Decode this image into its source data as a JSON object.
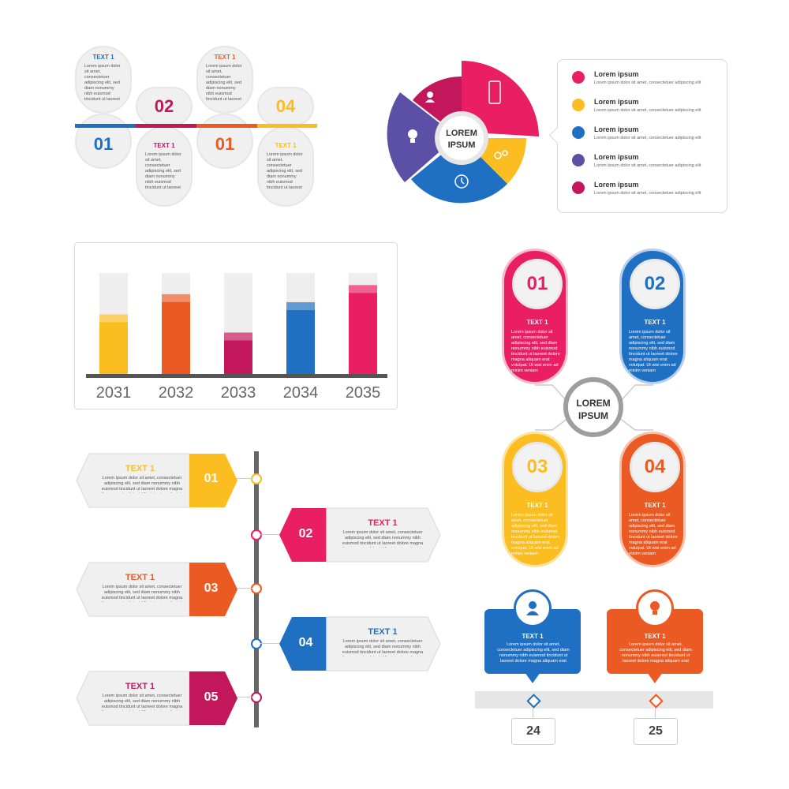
{
  "colors": {
    "pink": "#e91e63",
    "magenta": "#c2185b",
    "orange": "#ec5a24",
    "yellow": "#fbbd20",
    "blue": "#1f6fc2",
    "purple": "#5b4fa6",
    "grey": "#f0f0f0"
  },
  "lorem_small": "Lorem ipsum dolor sit amet, consectetuer adipiscing elit, sed diam nonummy nibh euismod tincidunt ut laoreet dolore magna aliquam erat volutpat. Ut wisi enim ad minim veniam",
  "wavy": {
    "items": [
      {
        "title": "TEXT 1",
        "num": "01",
        "color": "#1f6fc2"
      },
      {
        "title": "TEXT 1",
        "num": "02",
        "color": "#c2185b"
      },
      {
        "title": "TEXT 1",
        "num": "01",
        "color": "#ec5a24"
      },
      {
        "title": "TEXT 1",
        "num": "04",
        "color": "#fbbd20"
      }
    ]
  },
  "pie": {
    "center_line1": "LOREM",
    "center_line2": "IPSUM",
    "icons": [
      "user-icon",
      "phone-icon",
      "gears-icon",
      "clock-icon",
      "bulb-icon"
    ]
  },
  "legend": {
    "items": [
      {
        "title": "Lorem ipsum",
        "sub": "Lorem ipsum dolor sit amet, consectetuer adipiscing elit",
        "color": "#e91e63"
      },
      {
        "title": "Lorem ipsum",
        "sub": "Lorem ipsum dolor sit amet, consectetuer adipiscing elit",
        "color": "#fbbd20"
      },
      {
        "title": "Lorem ipsum",
        "sub": "Lorem ipsum dolor sit amet, consectetuer adipiscing elit",
        "color": "#1f6fc2"
      },
      {
        "title": "Lorem ipsum",
        "sub": "Lorem ipsum dolor sit amet, consectetuer adipiscing elit",
        "color": "#5b4fa6"
      },
      {
        "title": "Lorem ipsum",
        "sub": "Lorem ipsum dolor sit amet, consectetuer adipiscing elit",
        "color": "#c2185b"
      }
    ]
  },
  "chart_data": {
    "type": "bar",
    "categories": [
      "2031",
      "2032",
      "2033",
      "2034",
      "2035"
    ],
    "values": [
      0.59,
      0.79,
      0.41,
      0.71,
      0.88
    ],
    "colors": [
      "#fbbd20",
      "#ec5a24",
      "#c2185b",
      "#1f6fc2",
      "#e91e63"
    ],
    "ylim": [
      0,
      1
    ],
    "grid": false
  },
  "mind": {
    "center_line1": "LOREM",
    "center_line2": "IPSUM",
    "items": [
      {
        "num": "01",
        "title": "TEXT 1",
        "color": "#e91e63"
      },
      {
        "num": "02",
        "title": "TEXT 1",
        "color": "#1f6fc2"
      },
      {
        "num": "03",
        "title": "TEXT 1",
        "color": "#fbbd20"
      },
      {
        "num": "04",
        "title": "TEXT 1",
        "color": "#ec5a24"
      }
    ]
  },
  "timeline": {
    "items": [
      {
        "num": "01",
        "title": "TEXT 1",
        "color": "#fbbd20",
        "side": "left"
      },
      {
        "num": "02",
        "title": "TEXT 1",
        "color": "#e91e63",
        "side": "right"
      },
      {
        "num": "03",
        "title": "TEXT 1",
        "color": "#ec5a24",
        "side": "left"
      },
      {
        "num": "04",
        "title": "TEXT 1",
        "color": "#1f6fc2",
        "side": "right"
      },
      {
        "num": "05",
        "title": "TEXT 1",
        "color": "#c2185b",
        "side": "left"
      }
    ]
  },
  "callouts": {
    "items": [
      {
        "title": "TEXT 1",
        "num": "24",
        "color": "#1f6fc2",
        "icon": "user-icon"
      },
      {
        "title": "TEXT 1",
        "num": "25",
        "color": "#ec5a24",
        "icon": "bulb-icon"
      }
    ]
  }
}
